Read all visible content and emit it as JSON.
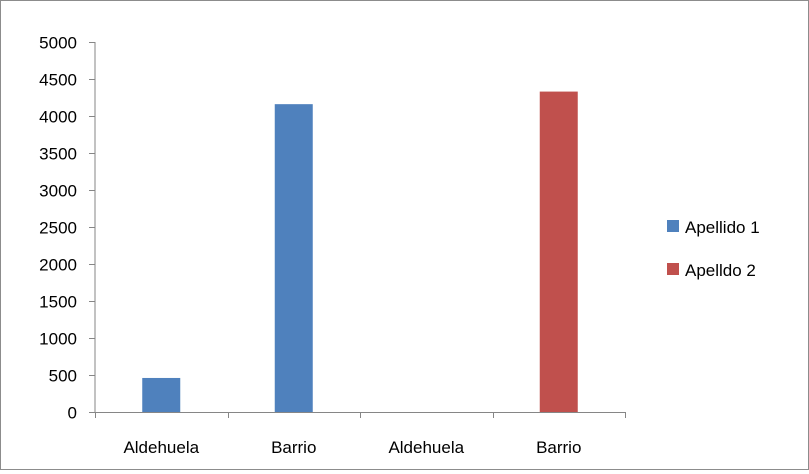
{
  "chart_data": {
    "type": "bar",
    "categories": [
      "Aldehuela",
      "Barrio",
      "Aldehuela",
      "Barrio"
    ],
    "series": [
      {
        "name": "Apellido 1",
        "color": "#4f81bd",
        "values": [
          460,
          4160,
          0,
          0
        ]
      },
      {
        "name": "Apelldo 2",
        "color": "#c0504d",
        "values": [
          0,
          0,
          0,
          4330
        ]
      }
    ],
    "ylim": [
      0,
      5000
    ],
    "yticks": [
      0,
      500,
      1000,
      1500,
      2000,
      2500,
      3000,
      3500,
      4000,
      4500,
      5000
    ],
    "grid": false,
    "legend_position": "right"
  }
}
